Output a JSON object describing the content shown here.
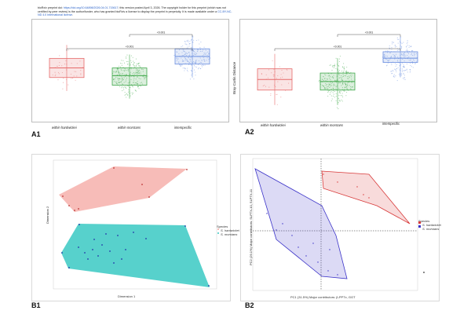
{
  "preprint_notice": {
    "pre_link": "bioRxiv preprint doi: ",
    "doi_link": "https://doi.org/10.64898/2026.04.01.715617",
    "post_link": "; this version posted April 3, 2026. The copyright holder for this preprint (which was not certified by peer review) is the author/funder, who has granted bioRxiv a license to display the preprint in perpetuity. It is made available under a",
    "license_link": "CC-BY-NC-ND 4.0 International license",
    "end": "."
  },
  "panels": {
    "a1": "A1",
    "a2": "A2",
    "b1": "B1",
    "b2": "B2"
  },
  "chart_data": [
    {
      "type": "box",
      "panel": "A1",
      "ylabel": "",
      "categories": [
        "within hardwickei",
        "within morstans",
        "interspecific"
      ],
      "medians": [
        0.46,
        0.42,
        0.52
      ],
      "q1": [
        0.41,
        0.37,
        0.48
      ],
      "q3": [
        0.51,
        0.46,
        0.56
      ],
      "colors": [
        "#e66a6a",
        "#3fa84a",
        "#6b8fe0"
      ],
      "brackets": [
        "<0.001",
        "<0.001"
      ]
    },
    {
      "type": "box",
      "panel": "A2",
      "ylabel": "Bray-Curtis Distance",
      "categories": [
        "within hardwickei",
        "within morstans",
        "interspecific"
      ],
      "medians": [
        0.33,
        0.32,
        0.43
      ],
      "q1": [
        0.28,
        0.28,
        0.41
      ],
      "q3": [
        0.38,
        0.36,
        0.46
      ],
      "colors": [
        "#e66a6a",
        "#3fa84a",
        "#6b8fe0"
      ],
      "brackets": [
        "<0.001",
        "<0.001"
      ]
    },
    {
      "type": "scatter",
      "panel": "B1",
      "xlabel": "Dimension 1",
      "ylabel": "Dimension 2",
      "legend_title": "Species",
      "legend": [
        "S. hardwickei",
        "S. morstans"
      ],
      "colors": [
        "#f4a6a0",
        "#39c9c3"
      ]
    },
    {
      "type": "scatter",
      "panel": "B2",
      "xlabel": "PC1 (31.5%) Major contributors: β-PPTx, GGT",
      "ylabel": "PC2 (29.1%) Major contributors: SLPTX-10, SLPTX-11",
      "legend_title": "Species",
      "legend": [
        "S. hardwickei",
        "S. morstans"
      ],
      "colors": [
        "#d83a3a",
        "#3b33c8"
      ]
    }
  ]
}
